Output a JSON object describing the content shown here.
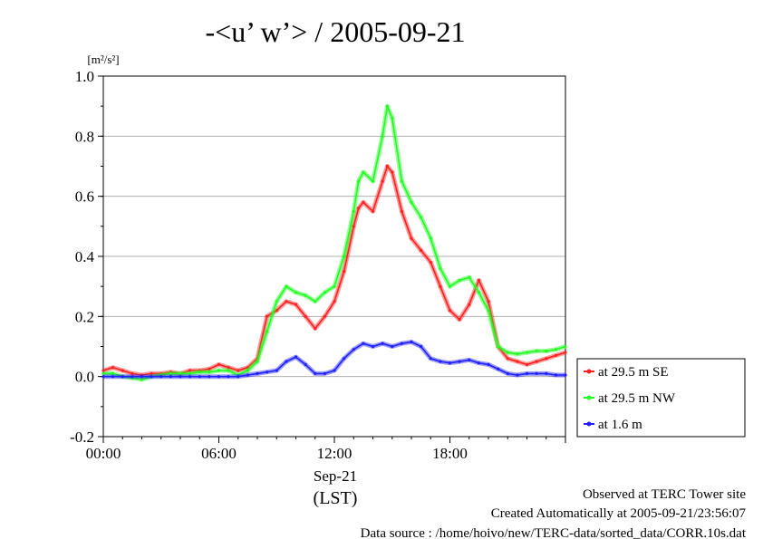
{
  "chart_data": {
    "type": "line",
    "title": "-<u’ w’> / 2005-09-21",
    "ylabel_unit": "[m²/s²]",
    "ylim": [
      -0.2,
      1.0
    ],
    "yticks": [
      "1.0",
      "0.8",
      "0.6",
      "0.4",
      "0.2",
      "0.0",
      "-0.2"
    ],
    "ytick_values": [
      1.0,
      0.8,
      0.6,
      0.4,
      0.2,
      0.0,
      -0.2
    ],
    "xlim_hours": [
      0,
      24
    ],
    "xticks": [
      "00:00",
      "06:00",
      "12:00",
      "18:00"
    ],
    "xtick_hours": [
      0,
      6,
      12,
      18
    ],
    "x_date_label": "Sep-21",
    "x_timezone_label": "(LST)",
    "grid": "horizontal",
    "legend_position": "right",
    "series": [
      {
        "name": "at 29.5 m SE",
        "color": "#ff2020",
        "x": [
          0,
          0.5,
          1,
          1.5,
          2,
          2.5,
          3,
          3.5,
          4,
          4.5,
          5,
          5.5,
          6,
          6.5,
          7,
          7.5,
          8,
          8.5,
          9,
          9.5,
          10,
          10.5,
          11,
          11.5,
          12,
          12.5,
          13,
          13.25,
          13.5,
          14,
          14.5,
          14.75,
          15,
          15.5,
          16,
          16.5,
          17,
          17.5,
          18,
          18.5,
          19,
          19.5,
          20,
          20.5,
          21,
          21.5,
          22,
          22.5,
          23,
          23.5,
          24
        ],
        "y": [
          0.02,
          0.03,
          0.02,
          0.01,
          0.005,
          0.01,
          0.01,
          0.015,
          0.01,
          0.02,
          0.02,
          0.025,
          0.04,
          0.03,
          0.02,
          0.03,
          0.06,
          0.2,
          0.22,
          0.25,
          0.24,
          0.2,
          0.16,
          0.2,
          0.25,
          0.35,
          0.5,
          0.56,
          0.58,
          0.55,
          0.65,
          0.7,
          0.68,
          0.55,
          0.46,
          0.42,
          0.38,
          0.3,
          0.22,
          0.19,
          0.24,
          0.32,
          0.25,
          0.1,
          0.06,
          0.05,
          0.04,
          0.05,
          0.06,
          0.07,
          0.08
        ]
      },
      {
        "name": "at 29.5 m NW",
        "color": "#20ff20",
        "x": [
          0,
          0.5,
          1,
          1.5,
          2,
          2.5,
          3,
          3.5,
          4,
          4.5,
          5,
          5.5,
          6,
          6.5,
          7,
          7.5,
          8,
          8.5,
          9,
          9.5,
          10,
          10.5,
          11,
          11.5,
          12,
          12.5,
          13,
          13.25,
          13.5,
          14,
          14.5,
          14.75,
          15,
          15.5,
          16,
          16.5,
          17,
          17.5,
          18,
          18.5,
          19,
          19.5,
          20,
          20.5,
          21,
          21.5,
          22,
          22.5,
          23,
          23.5,
          24
        ],
        "y": [
          0.01,
          0.01,
          0.0,
          -0.005,
          -0.01,
          0.0,
          0.005,
          0.01,
          0.01,
          0.01,
          0.015,
          0.015,
          0.02,
          0.02,
          0.005,
          0.02,
          0.05,
          0.15,
          0.25,
          0.3,
          0.28,
          0.27,
          0.25,
          0.28,
          0.3,
          0.4,
          0.55,
          0.65,
          0.68,
          0.65,
          0.8,
          0.9,
          0.86,
          0.65,
          0.58,
          0.53,
          0.46,
          0.36,
          0.3,
          0.32,
          0.33,
          0.28,
          0.22,
          0.1,
          0.08,
          0.075,
          0.08,
          0.085,
          0.085,
          0.09,
          0.1
        ]
      },
      {
        "name": "at 1.6 m",
        "color": "#2020ff",
        "x": [
          0,
          0.5,
          1,
          1.5,
          2,
          2.5,
          3,
          3.5,
          4,
          4.5,
          5,
          5.5,
          6,
          6.5,
          7,
          7.5,
          8,
          8.5,
          9,
          9.5,
          10,
          10.5,
          11,
          11.5,
          12,
          12.5,
          13,
          13.5,
          14,
          14.5,
          15,
          15.5,
          16,
          16.5,
          17,
          17.5,
          18,
          18.5,
          19,
          19.5,
          20,
          20.5,
          21,
          21.5,
          22,
          22.5,
          23,
          23.5,
          24
        ],
        "y": [
          0.0,
          0.0,
          0.0,
          0.0,
          0.0,
          0.0,
          0.0,
          0.0,
          0.0,
          0.0,
          0.0,
          0.0,
          0.0,
          0.0,
          0.0,
          0.005,
          0.01,
          0.015,
          0.02,
          0.05,
          0.065,
          0.04,
          0.01,
          0.01,
          0.02,
          0.06,
          0.09,
          0.11,
          0.1,
          0.11,
          0.1,
          0.11,
          0.115,
          0.1,
          0.06,
          0.05,
          0.045,
          0.05,
          0.055,
          0.045,
          0.04,
          0.025,
          0.01,
          0.005,
          0.01,
          0.01,
          0.01,
          0.005,
          0.005
        ]
      }
    ]
  },
  "footer": {
    "line1": "Observed at TERC Tower site",
    "line2": "Created Automatically at 2005-09-21/23:56:07",
    "line3": "Data source : /home/hoivo/new/TERC-data/sorted_data/CORR.10s.dat"
  }
}
